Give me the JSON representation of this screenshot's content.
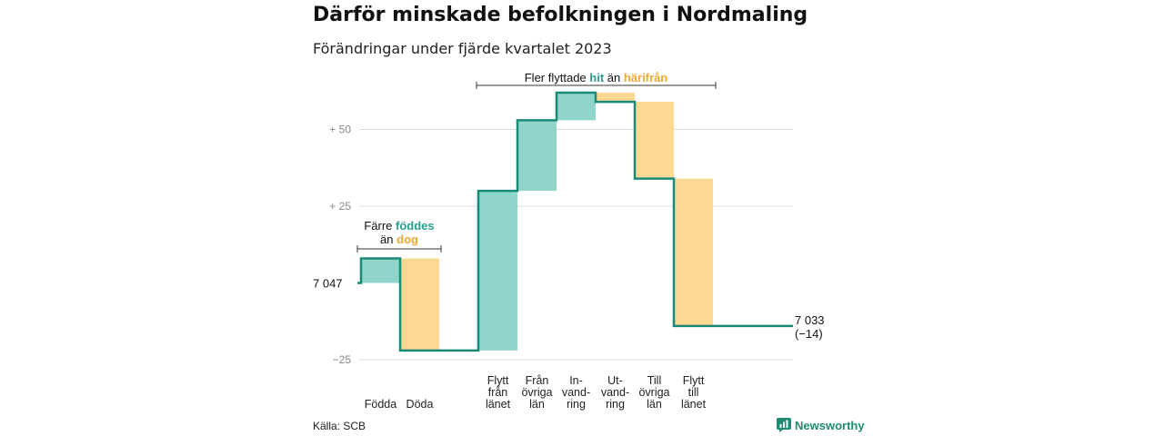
{
  "header": {
    "title": "Därför minskade befolkningen i Nordmaling",
    "subtitle": "Förändringar under fjärde kvartalet 2023"
  },
  "footer": {
    "source": "Källa: SCB",
    "logo_text": "Newsworthy"
  },
  "colors": {
    "teal_fill": "#8fd5cb",
    "orange_fill": "#fcd892",
    "teal_line": "#1a8a78",
    "teal_text": "#2a9d8f",
    "orange_text": "#f0a830",
    "grid": "#dddddd"
  },
  "chart_data": {
    "type": "waterfall",
    "start_label": "7 047",
    "end_label_value": "7 033",
    "end_label_change": "(−14)",
    "yticks": [
      {
        "value": 50,
        "label": "+ 50"
      },
      {
        "value": 25,
        "label": "+ 25"
      },
      {
        "value": -25,
        "label": "−25"
      }
    ],
    "ylim": [
      -27,
      66
    ],
    "categories": [
      {
        "label": [
          "Födda"
        ],
        "delta": 8,
        "kind": "in"
      },
      {
        "label": [
          "Döda"
        ],
        "delta": -30,
        "kind": "out"
      },
      {
        "label": [],
        "delta": 0,
        "kind": "none"
      },
      {
        "label": [
          "Flytt",
          "från",
          "länet"
        ],
        "delta": 52,
        "kind": "in"
      },
      {
        "label": [
          "Från",
          "övriga",
          "län"
        ],
        "delta": 23,
        "kind": "in"
      },
      {
        "label": [
          "In-",
          "vand-",
          "ring"
        ],
        "delta": 9,
        "kind": "in"
      },
      {
        "label": [
          "Ut-",
          "vand-",
          "ring"
        ],
        "delta": -3,
        "kind": "out"
      },
      {
        "label": [
          "Till",
          "övriga",
          "län"
        ],
        "delta": -25,
        "kind": "out"
      },
      {
        "label": [
          "Flytt",
          "till",
          "länet"
        ],
        "delta": -48,
        "kind": "out"
      }
    ],
    "annotations": [
      {
        "id": "births",
        "line1": "Färre ",
        "line1_highlight": "föddes",
        "line2": "än ",
        "line2_highlight": "dog",
        "span": [
          0,
          1
        ]
      },
      {
        "id": "moves",
        "text_before": "Fler flyttade ",
        "highlight_in": "hit",
        "text_mid": " än ",
        "highlight_out": "härifrån",
        "span": [
          3,
          8
        ]
      }
    ]
  }
}
